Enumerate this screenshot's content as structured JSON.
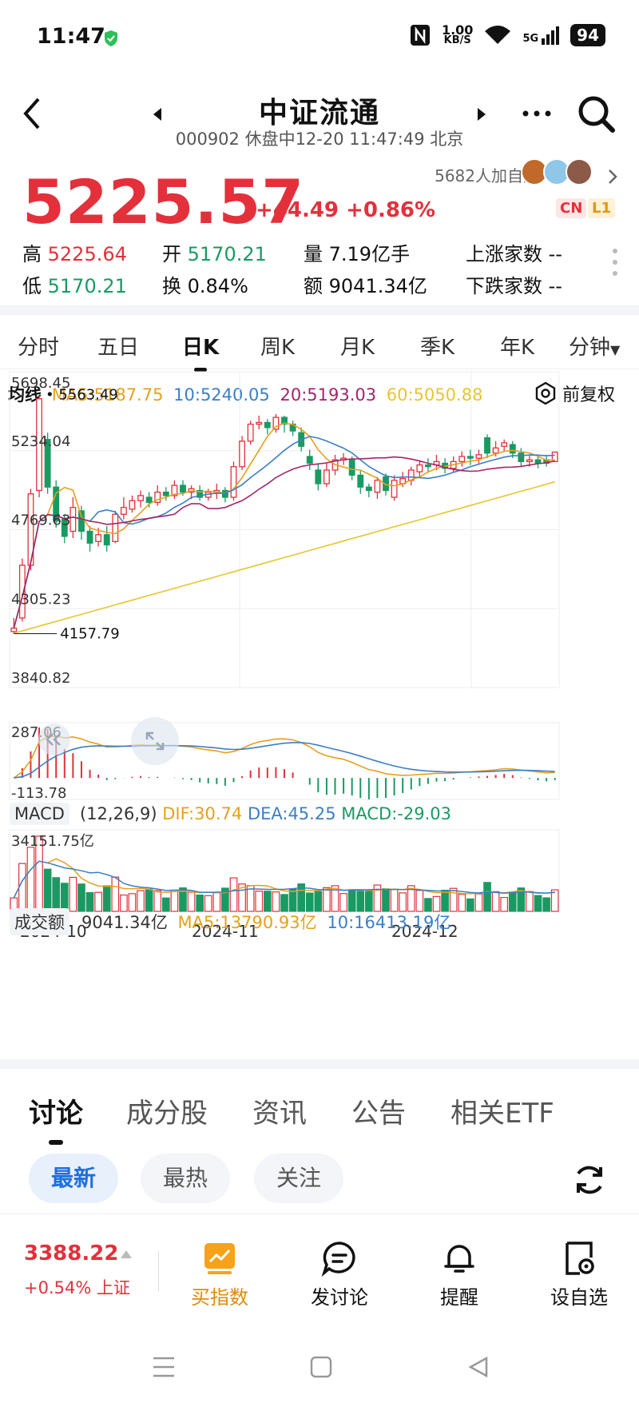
{
  "status_bar": {
    "time": "11:47",
    "net_speed_value": "1.00",
    "net_speed_unit": "KB/S",
    "signal": "5G",
    "battery": "94"
  },
  "nav": {
    "title": "中证流通",
    "subtitle": "000902 休盘中12-20 11:47:49 北京"
  },
  "quote": {
    "price": "5225.57",
    "change": "+44.49 +0.86%",
    "watchers": "5682人加自选",
    "badge_cn": "CN",
    "badge_l1": "L1",
    "high_label": "高",
    "high": "5225.64",
    "open_label": "开",
    "open": "5170.21",
    "volume_label": "量",
    "volume": "7.19亿手",
    "up_label": "上涨家数",
    "up": "--",
    "low_label": "低",
    "low": "5170.21",
    "turnover_label": "换",
    "turnover": "0.84%",
    "amount_label": "额",
    "amount": "9041.34亿",
    "down_label": "下跌家数",
    "down": "--"
  },
  "kline_tabs": [
    "分时",
    "五日",
    "日K",
    "周K",
    "月K",
    "季K",
    "年K",
    "分钟"
  ],
  "ma_legend": {
    "label": "均线",
    "ma5": "MA5:5187.75",
    "ma10": "10:5240.05",
    "ma20": "20:5193.03",
    "ma60": "60:5050.88",
    "adjust": "前复权"
  },
  "colors": {
    "up": "#e3303b",
    "down": "#1a9a63",
    "ma5": "#e6a01e",
    "ma10": "#3b7fc4",
    "ma20": "#a3246a",
    "ma60": "#e8c630",
    "accent": "#1f6fe0"
  },
  "chart_data": {
    "type": "candlestick",
    "y_axis_labels": [
      "5698.45",
      "5234.04",
      "4769.63",
      "4305.23",
      "3840.82"
    ],
    "ylim": [
      3840.82,
      5698.45
    ],
    "max_marker": "5563.49",
    "min_marker": "4157.79",
    "x_labels": [
      "2024-10",
      "2024-11",
      "2024-12"
    ],
    "candles": [
      [
        4170,
        4190,
        4157.79,
        4250
      ],
      [
        4250,
        4560,
        4230,
        4600
      ],
      [
        4560,
        4980,
        4530,
        5010
      ],
      [
        5000,
        5540,
        4960,
        5563.49
      ],
      [
        5300,
        5020,
        4980,
        5340
      ],
      [
        5020,
        4820,
        4780,
        5060
      ],
      [
        4830,
        4730,
        4690,
        4860
      ],
      [
        4760,
        4900,
        4720,
        4960
      ],
      [
        4880,
        4760,
        4710,
        4910
      ],
      [
        4760,
        4690,
        4640,
        4790
      ],
      [
        4700,
        4740,
        4670,
        4780
      ],
      [
        4740,
        4680,
        4640,
        4790
      ],
      [
        4700,
        4860,
        4690,
        4880
      ],
      [
        4860,
        4900,
        4830,
        4960
      ],
      [
        4890,
        4940,
        4870,
        4970
      ],
      [
        4940,
        4970,
        4900,
        5000
      ],
      [
        4960,
        4930,
        4900,
        4990
      ],
      [
        4930,
        4990,
        4910,
        5030
      ],
      [
        4990,
        4970,
        4940,
        5020
      ],
      [
        4970,
        5030,
        4950,
        5060
      ],
      [
        5030,
        4990,
        4970,
        5060
      ],
      [
        4990,
        5010,
        4950,
        5030
      ],
      [
        5000,
        4960,
        4940,
        5030
      ],
      [
        4960,
        4990,
        4940,
        5010
      ],
      [
        4990,
        5000,
        4950,
        5040
      ],
      [
        5000,
        4960,
        4930,
        5020
      ],
      [
        4960,
        5140,
        4940,
        5170
      ],
      [
        5140,
        5290,
        5120,
        5320
      ],
      [
        5290,
        5390,
        5270,
        5410
      ],
      [
        5390,
        5400,
        5360,
        5440
      ],
      [
        5400,
        5370,
        5330,
        5420
      ],
      [
        5360,
        5430,
        5340,
        5450
      ],
      [
        5430,
        5390,
        5340,
        5440
      ],
      [
        5390,
        5350,
        5320,
        5410
      ],
      [
        5340,
        5260,
        5230,
        5370
      ],
      [
        5200,
        5160,
        5120,
        5240
      ],
      [
        5120,
        5040,
        5000,
        5160
      ],
      [
        5040,
        5120,
        5020,
        5160
      ],
      [
        5120,
        5180,
        5090,
        5210
      ],
      [
        5180,
        5190,
        5150,
        5220
      ],
      [
        5180,
        5090,
        5060,
        5200
      ],
      [
        5090,
        5020,
        4980,
        5120
      ],
      [
        5020,
        5000,
        4960,
        5040
      ],
      [
        4990,
        5060,
        4950,
        5080
      ],
      [
        5080,
        5000,
        4970,
        5100
      ],
      [
        4960,
        5060,
        4940,
        5090
      ],
      [
        5040,
        5070,
        5020,
        5110
      ],
      [
        5060,
        5120,
        5030,
        5140
      ],
      [
        5110,
        5150,
        5080,
        5170
      ],
      [
        5150,
        5140,
        5110,
        5190
      ],
      [
        5150,
        5170,
        5120,
        5210
      ],
      [
        5160,
        5130,
        5100,
        5190
      ],
      [
        5130,
        5170,
        5110,
        5200
      ],
      [
        5170,
        5200,
        5140,
        5230
      ],
      [
        5200,
        5190,
        5150,
        5240
      ],
      [
        5190,
        5210,
        5160,
        5240
      ],
      [
        5310,
        5220,
        5190,
        5330
      ],
      [
        5220,
        5250,
        5200,
        5290
      ],
      [
        5260,
        5280,
        5230,
        5300
      ],
      [
        5270,
        5220,
        5190,
        5290
      ],
      [
        5220,
        5170,
        5140,
        5250
      ],
      [
        5170,
        5180,
        5140,
        5210
      ],
      [
        5180,
        5160,
        5130,
        5210
      ],
      [
        5180,
        5160,
        5140,
        5210
      ],
      [
        5170,
        5225.57,
        5170.21,
        5225.64
      ]
    ],
    "macd": {
      "label": "MACD",
      "params": "(12,26,9)",
      "dif": "DIF:30.74",
      "dea": "DEA:45.25",
      "macd": "MACD:-29.03",
      "y_top": "287.06",
      "y_bottom": "-113.78"
    },
    "volume": {
      "label": "成交额",
      "value": "9041.34亿",
      "ma5": "MA5:13790.93亿",
      "ma10": "10:16413.19亿",
      "y_top": "34151.75亿"
    }
  },
  "discussion": {
    "tabs": [
      "讨论",
      "成分股",
      "资讯",
      "公告",
      "相关ETF"
    ],
    "filters": [
      "最新",
      "最热",
      "关注"
    ]
  },
  "bottom_bar": {
    "index_price": "3388.22",
    "index_change": "+0.54% 上证",
    "buy": "买指数",
    "post": "发讨论",
    "alert": "提醒",
    "watch": "设自选"
  }
}
